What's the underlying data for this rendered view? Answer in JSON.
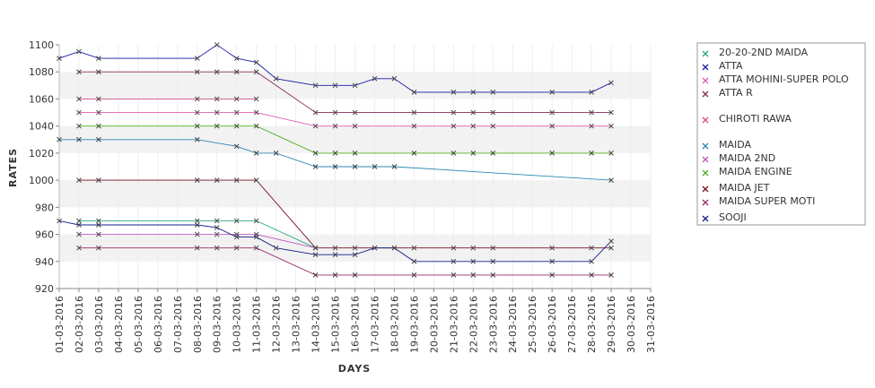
{
  "chart_data": {
    "type": "line",
    "xlabel": "DAYS",
    "ylabel": "RATES",
    "ylim": [
      920,
      1100
    ],
    "yticks": [
      920,
      940,
      960,
      980,
      1000,
      1020,
      1040,
      1060,
      1080,
      1100
    ],
    "grid": "alternating horizontal bands",
    "legend": "right",
    "categories": [
      "01-03-2016",
      "02-03-2016",
      "03-03-2016",
      "04-03-2016",
      "05-03-2016",
      "06-03-2016",
      "07-03-2016",
      "08-03-2016",
      "09-03-2016",
      "10-03-2016",
      "11-03-2016",
      "12-03-2016",
      "13-03-2016",
      "14-03-2016",
      "15-03-2016",
      "16-03-2016",
      "17-03-2016",
      "18-03-2016",
      "19-03-2016",
      "20-03-2016",
      "21-03-2016",
      "22-03-2016",
      "23-03-2016",
      "24-03-2016",
      "25-03-2016",
      "26-03-2016",
      "27-03-2016",
      "28-03-2016",
      "29-03-2016",
      "30-03-2016",
      "31-03-2016"
    ],
    "series": [
      {
        "name": "20-20-2ND MAIDA",
        "color": "#2aa88a",
        "values": [
          null,
          970,
          970,
          null,
          null,
          null,
          null,
          970,
          970,
          970,
          970,
          null,
          null,
          950,
          null,
          null,
          null,
          null,
          null,
          null,
          null,
          null,
          null,
          null,
          null,
          null,
          null,
          null,
          null,
          null,
          null
        ]
      },
      {
        "name": "ATTA",
        "color": "#1a1aa6",
        "values": [
          1090,
          1095,
          1090,
          null,
          null,
          null,
          null,
          1090,
          1100,
          1090,
          1087,
          1075,
          null,
          1070,
          1070,
          1070,
          1075,
          1075,
          1065,
          null,
          1065,
          1065,
          1065,
          null,
          null,
          1065,
          null,
          1065,
          1072,
          null,
          null
        ]
      },
      {
        "name": "ATTA MOHINI-SUPER POLO",
        "color": "#e05cb5",
        "values": [
          null,
          1050,
          1050,
          null,
          null,
          null,
          null,
          1050,
          1050,
          1050,
          1050,
          null,
          null,
          1040,
          1040,
          1040,
          null,
          null,
          1040,
          null,
          1040,
          1040,
          1040,
          null,
          null,
          1040,
          null,
          1040,
          1040,
          null,
          null
        ]
      },
      {
        "name": "ATTA R",
        "color": "#8a2a5a",
        "values": [
          null,
          1080,
          1080,
          null,
          null,
          null,
          null,
          1080,
          1080,
          1080,
          1080,
          null,
          null,
          1050,
          1050,
          1050,
          null,
          null,
          1050,
          null,
          1050,
          1050,
          1050,
          null,
          null,
          1050,
          null,
          1050,
          1050,
          null,
          null
        ]
      },
      {
        "name": "CHIROTI RAWA",
        "color": "#d24a8a",
        "values": [
          null,
          1060,
          1060,
          null,
          null,
          null,
          null,
          1060,
          1060,
          1060,
          1060,
          null,
          null,
          null,
          null,
          null,
          null,
          null,
          null,
          null,
          null,
          null,
          null,
          null,
          null,
          null,
          null,
          null,
          null,
          null,
          null
        ]
      },
      {
        "name": "MAIDA",
        "color": "#2c86b4",
        "values": [
          1030,
          1030,
          1030,
          null,
          null,
          null,
          null,
          1030,
          null,
          1025,
          1020,
          1020,
          null,
          1010,
          1010,
          1010,
          1010,
          1010,
          null,
          null,
          null,
          null,
          null,
          null,
          null,
          null,
          null,
          null,
          1000,
          null,
          null
        ]
      },
      {
        "name": "MAIDA 2ND",
        "color": "#c257c2",
        "values": [
          null,
          960,
          960,
          null,
          null,
          null,
          null,
          960,
          960,
          960,
          960,
          null,
          null,
          950,
          null,
          null,
          null,
          null,
          null,
          null,
          null,
          null,
          null,
          null,
          null,
          null,
          null,
          null,
          null,
          null,
          null
        ]
      },
      {
        "name": "MAIDA ENGINE",
        "color": "#4caf1e",
        "values": [
          null,
          1040,
          1040,
          null,
          null,
          null,
          null,
          1040,
          1040,
          1040,
          1040,
          null,
          null,
          1020,
          1020,
          1020,
          null,
          null,
          1020,
          null,
          1020,
          1020,
          1020,
          null,
          null,
          1020,
          null,
          1020,
          1020,
          null,
          null
        ]
      },
      {
        "name": "MAIDA JET",
        "color": "#7a1020",
        "values": [
          null,
          1000,
          1000,
          null,
          null,
          null,
          null,
          1000,
          1000,
          1000,
          1000,
          null,
          null,
          950,
          950,
          950,
          950,
          950,
          950,
          null,
          950,
          950,
          950,
          null,
          null,
          950,
          null,
          950,
          950,
          null,
          null
        ]
      },
      {
        "name": "MAIDA SUPER MOTI",
        "color": "#9a2a6e",
        "values": [
          null,
          950,
          950,
          null,
          null,
          null,
          null,
          950,
          950,
          950,
          950,
          null,
          null,
          930,
          930,
          930,
          null,
          null,
          930,
          null,
          930,
          930,
          930,
          null,
          null,
          930,
          null,
          930,
          930,
          null,
          null
        ]
      },
      {
        "name": "SOOJI",
        "color": "#141c8c",
        "values": [
          970,
          967,
          967,
          null,
          null,
          null,
          null,
          967,
          965,
          958,
          958,
          950,
          null,
          945,
          945,
          945,
          950,
          950,
          940,
          null,
          940,
          940,
          940,
          null,
          null,
          940,
          null,
          940,
          955,
          null,
          null
        ]
      }
    ]
  }
}
